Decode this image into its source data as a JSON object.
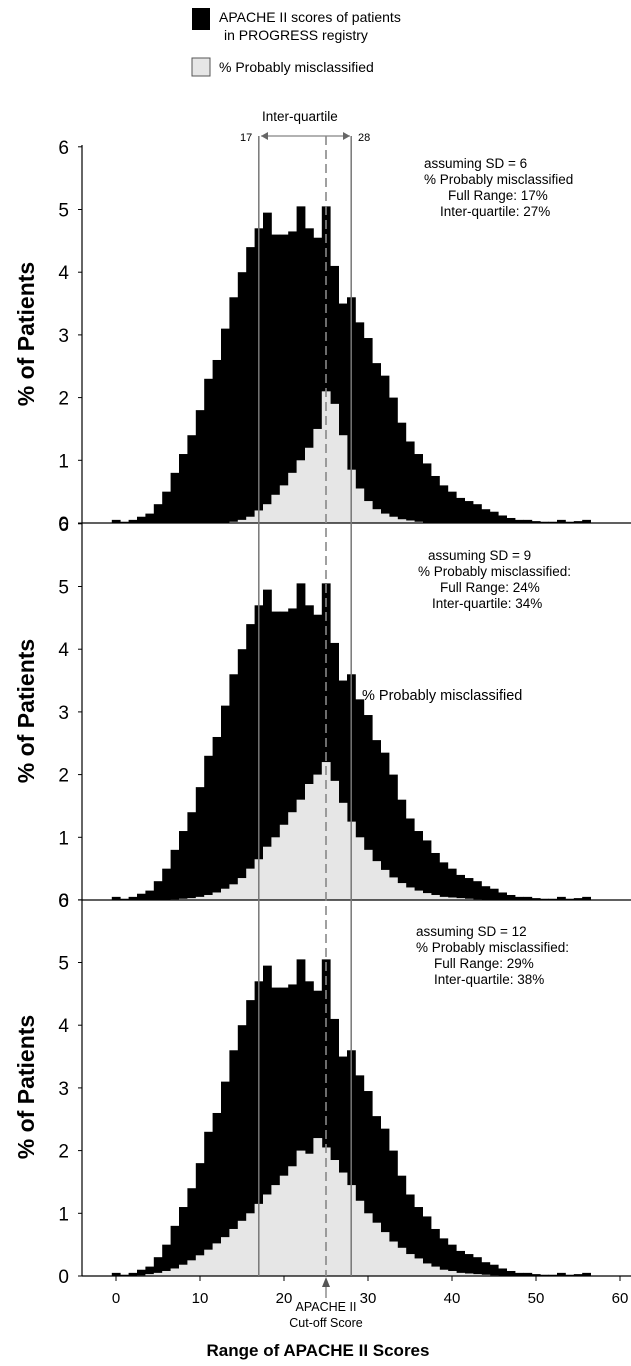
{
  "legend": {
    "items": [
      {
        "label_lines": [
          "APACHE II scores of patients",
          "in PROGRESS registry"
        ],
        "color": "#000000"
      },
      {
        "label_lines": [
          "% Probably  misclassified"
        ],
        "color": "#e6e6e6"
      }
    ]
  },
  "interquartile": {
    "label": "Inter-quartile",
    "low": 17,
    "high": 28,
    "low_label": "17",
    "high_label": "28"
  },
  "cutoff": {
    "value": 25,
    "label_lines": [
      "APACHE II",
      "Cut-off Score"
    ]
  },
  "xaxis": {
    "label": "Range of APACHE II Scores",
    "ticks": [
      "0",
      "10",
      "20",
      "30",
      "40",
      "50",
      "60"
    ]
  },
  "chart_data": [
    {
      "type": "bar",
      "ylabel": "% of Patients",
      "ylim": [
        0,
        6
      ],
      "yticks": [
        "0",
        "1",
        "2",
        "3",
        "4",
        "5",
        "6"
      ],
      "xlim": [
        -4,
        60
      ],
      "x": [
        0,
        1,
        2,
        3,
        4,
        5,
        6,
        7,
        8,
        9,
        10,
        11,
        12,
        13,
        14,
        15,
        16,
        17,
        18,
        19,
        20,
        21,
        22,
        23,
        24,
        25,
        26,
        27,
        28,
        29,
        30,
        31,
        32,
        33,
        34,
        35,
        36,
        37,
        38,
        39,
        40,
        41,
        42,
        43,
        44,
        45,
        46,
        47,
        48,
        49,
        50,
        51,
        52,
        53,
        54,
        55,
        56
      ],
      "series": [
        {
          "name": "APACHE II scores of patients in PROGRESS registry",
          "values": [
            0.05,
            0.02,
            0.05,
            0.1,
            0.15,
            0.3,
            0.5,
            0.8,
            1.1,
            1.4,
            1.8,
            2.3,
            2.6,
            3.1,
            3.6,
            4.0,
            4.4,
            4.7,
            4.95,
            4.6,
            4.6,
            4.65,
            5.05,
            4.7,
            4.55,
            5.05,
            4.1,
            3.5,
            3.6,
            3.2,
            2.95,
            2.55,
            2.35,
            2.0,
            1.6,
            1.3,
            1.1,
            0.95,
            0.75,
            0.6,
            0.5,
            0.4,
            0.35,
            0.3,
            0.22,
            0.18,
            0.12,
            0.08,
            0.05,
            0.05,
            0.03,
            0.02,
            0.02,
            0.05,
            0.02,
            0.03,
            0.05
          ]
        },
        {
          "name": "% Probably  misclassified",
          "values": [
            0,
            0,
            0,
            0,
            0,
            0,
            0,
            0,
            0,
            0,
            0,
            0,
            0,
            0,
            0.02,
            0.05,
            0.1,
            0.2,
            0.3,
            0.45,
            0.6,
            0.8,
            1.0,
            1.2,
            1.5,
            2.1,
            1.9,
            1.4,
            0.85,
            0.55,
            0.35,
            0.22,
            0.15,
            0.1,
            0.06,
            0.04,
            0.02,
            0,
            0,
            0,
            0,
            0,
            0,
            0,
            0,
            0,
            0,
            0,
            0,
            0,
            0,
            0,
            0,
            0,
            0,
            0,
            0
          ]
        }
      ],
      "annotation_lines": [
        "assuming SD = 6",
        "% Probably misclassified",
        "Full Range:   17%",
        "Inter-quartile: 27%"
      ]
    },
    {
      "type": "bar",
      "ylabel": "% of Patients",
      "ylim": [
        0,
        6
      ],
      "yticks": [
        "0",
        "1",
        "2",
        "3",
        "4",
        "5",
        "6"
      ],
      "xlim": [
        -4,
        60
      ],
      "x": [
        0,
        1,
        2,
        3,
        4,
        5,
        6,
        7,
        8,
        9,
        10,
        11,
        12,
        13,
        14,
        15,
        16,
        17,
        18,
        19,
        20,
        21,
        22,
        23,
        24,
        25,
        26,
        27,
        28,
        29,
        30,
        31,
        32,
        33,
        34,
        35,
        36,
        37,
        38,
        39,
        40,
        41,
        42,
        43,
        44,
        45,
        46,
        47,
        48,
        49,
        50,
        51,
        52,
        53,
        54,
        55,
        56
      ],
      "series": [
        {
          "name": "APACHE II scores of patients in PROGRESS registry",
          "values": [
            0.05,
            0.02,
            0.05,
            0.1,
            0.15,
            0.3,
            0.5,
            0.8,
            1.1,
            1.4,
            1.8,
            2.3,
            2.6,
            3.1,
            3.6,
            4.0,
            4.4,
            4.7,
            4.95,
            4.6,
            4.6,
            4.65,
            5.05,
            4.7,
            4.55,
            5.05,
            4.1,
            3.5,
            3.6,
            3.2,
            2.95,
            2.55,
            2.35,
            2.0,
            1.6,
            1.3,
            1.1,
            0.95,
            0.75,
            0.6,
            0.5,
            0.4,
            0.35,
            0.3,
            0.22,
            0.18,
            0.12,
            0.08,
            0.05,
            0.05,
            0.03,
            0.02,
            0.02,
            0.05,
            0.02,
            0.03,
            0.05
          ]
        },
        {
          "name": "% Probably  misclassified",
          "values": [
            0,
            0,
            0,
            0,
            0,
            0,
            0,
            0.01,
            0.02,
            0.03,
            0.05,
            0.08,
            0.12,
            0.18,
            0.25,
            0.35,
            0.5,
            0.65,
            0.85,
            1.0,
            1.2,
            1.4,
            1.6,
            1.85,
            2.0,
            2.2,
            1.9,
            1.55,
            1.25,
            1.0,
            0.8,
            0.62,
            0.48,
            0.36,
            0.27,
            0.2,
            0.15,
            0.11,
            0.08,
            0.05,
            0.04,
            0.03,
            0.02,
            0.01,
            0,
            0,
            0,
            0,
            0,
            0,
            0,
            0,
            0,
            0,
            0,
            0,
            0
          ]
        }
      ],
      "annotation_lines": [
        "assuming SD = 9",
        "% Probably misclassified:",
        "Full Range:   24%",
        "Inter-quartile: 34%"
      ],
      "inline_label": "% Probably  misclassified"
    },
    {
      "type": "bar",
      "ylabel": "% of Patients",
      "ylim": [
        0,
        6
      ],
      "yticks": [
        "0",
        "1",
        "2",
        "3",
        "4",
        "5",
        "6"
      ],
      "xlim": [
        -4,
        60
      ],
      "x": [
        0,
        1,
        2,
        3,
        4,
        5,
        6,
        7,
        8,
        9,
        10,
        11,
        12,
        13,
        14,
        15,
        16,
        17,
        18,
        19,
        20,
        21,
        22,
        23,
        24,
        25,
        26,
        27,
        28,
        29,
        30,
        31,
        32,
        33,
        34,
        35,
        36,
        37,
        38,
        39,
        40,
        41,
        42,
        43,
        44,
        45,
        46,
        47,
        48,
        49,
        50,
        51,
        52,
        53,
        54,
        55,
        56
      ],
      "series": [
        {
          "name": "APACHE II scores of patients in PROGRESS registry",
          "values": [
            0.05,
            0.02,
            0.05,
            0.1,
            0.15,
            0.3,
            0.5,
            0.8,
            1.1,
            1.4,
            1.8,
            2.3,
            2.6,
            3.1,
            3.6,
            4.0,
            4.4,
            4.7,
            4.95,
            4.6,
            4.6,
            4.65,
            5.05,
            4.7,
            4.55,
            5.05,
            4.1,
            3.5,
            3.6,
            3.2,
            2.95,
            2.55,
            2.35,
            2.0,
            1.6,
            1.3,
            1.1,
            0.95,
            0.75,
            0.6,
            0.5,
            0.4,
            0.35,
            0.3,
            0.22,
            0.18,
            0.12,
            0.08,
            0.05,
            0.05,
            0.03,
            0.02,
            0.02,
            0.05,
            0.02,
            0.03,
            0.05
          ]
        },
        {
          "name": "% Probably  misclassified",
          "values": [
            0,
            0,
            0,
            0.01,
            0.03,
            0.05,
            0.08,
            0.12,
            0.18,
            0.25,
            0.33,
            0.42,
            0.52,
            0.62,
            0.75,
            0.88,
            1.0,
            1.15,
            1.3,
            1.45,
            1.6,
            1.75,
            2.0,
            1.95,
            2.2,
            2.05,
            1.85,
            1.65,
            1.45,
            1.2,
            1.0,
            0.85,
            0.7,
            0.55,
            0.45,
            0.35,
            0.28,
            0.2,
            0.15,
            0.1,
            0.08,
            0.05,
            0.04,
            0.03,
            0.02,
            0.01,
            0,
            0,
            0,
            0,
            0,
            0,
            0,
            0,
            0,
            0,
            0
          ]
        }
      ],
      "annotation_lines": [
        "assuming SD = 12",
        "% Probably misclassified:",
        "Full Range:   29%",
        "Inter-quartile: 38%"
      ]
    }
  ]
}
